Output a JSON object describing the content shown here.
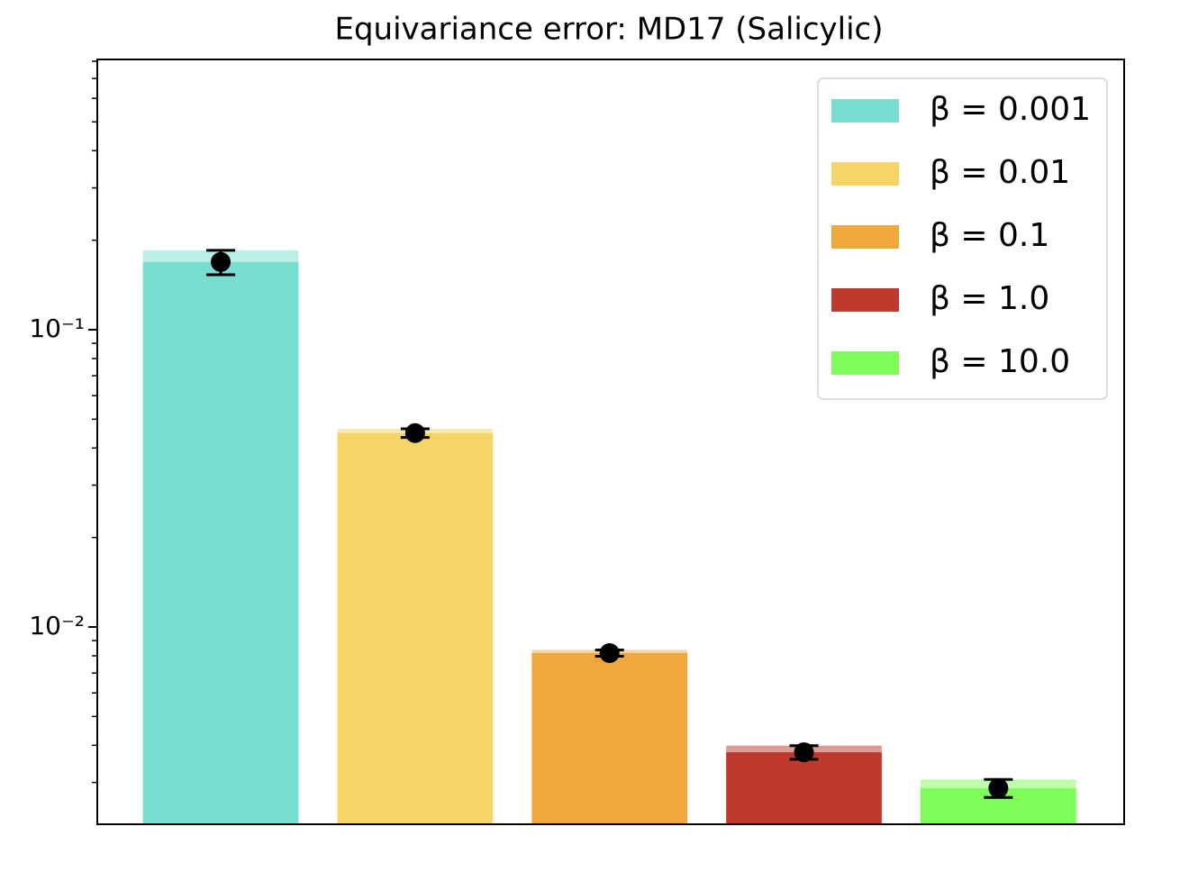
{
  "chart_data": {
    "type": "bar",
    "title": "Equivariance error: MD17 (Salicylic)",
    "log_scale": true,
    "ylim": [
      0.00217,
      0.811
    ],
    "yticks": [
      {
        "value": 0.01,
        "label": "10⁻²"
      },
      {
        "value": 0.1,
        "label": "10⁻¹"
      }
    ],
    "minor_yticks": [
      0.003,
      0.004,
      0.005,
      0.006,
      0.007,
      0.008,
      0.009,
      0.02,
      0.03,
      0.04,
      0.05,
      0.06,
      0.07,
      0.08,
      0.09,
      0.2,
      0.3,
      0.4,
      0.5,
      0.6,
      0.7,
      0.8
    ],
    "legend": "upper right",
    "series": [
      {
        "name": "β = 0.001",
        "color": "#76ddd0",
        "values": [
          0.169
        ],
        "errors": [
          0.016
        ]
      },
      {
        "name": "β = 0.01",
        "color": "#f7d468",
        "values": [
          0.0449
        ],
        "errors": [
          0.0015
        ]
      },
      {
        "name": "β = 0.1",
        "color": "#eea83b",
        "values": [
          0.00817
        ],
        "errors": [
          0.0002
        ]
      },
      {
        "name": "β = 1.0",
        "color": "#c0392f",
        "values": [
          0.00379
        ],
        "errors": [
          0.0002
        ]
      },
      {
        "name": "β = 10.0",
        "color": "#7dfc5a",
        "values": [
          0.00287
        ],
        "errors": [
          0.0002
        ]
      }
    ]
  }
}
